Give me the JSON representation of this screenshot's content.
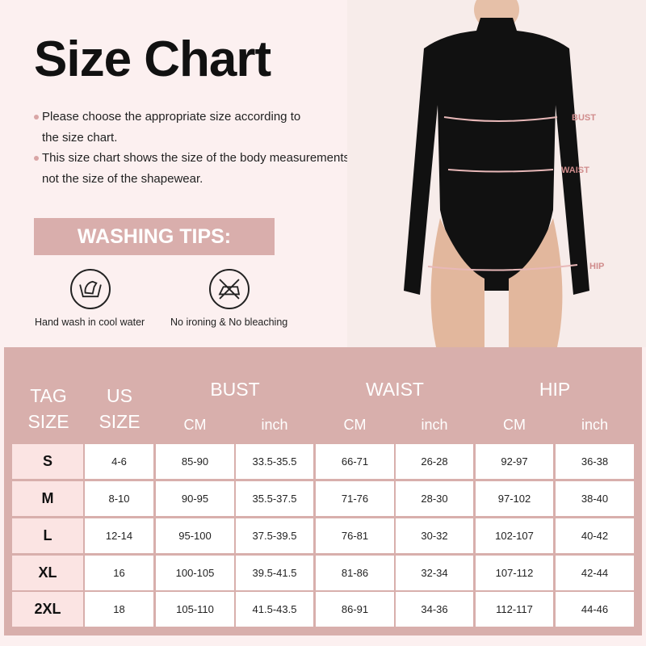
{
  "title": "Size Chart",
  "notes": [
    {
      "line1": "Please choose the appropriate size according to",
      "line2": "the size chart."
    },
    {
      "line1": "This size chart shows the size of the body measurements,",
      "line2": "not the size of the shapewear."
    }
  ],
  "washing": {
    "banner": "WASHING TIPS:",
    "tips": [
      {
        "icon": "hand-wash-icon",
        "label": "Hand wash in cool water"
      },
      {
        "icon": "no-iron-icon",
        "label": "No ironing & No bleaching"
      }
    ]
  },
  "photo": {
    "labels": {
      "bust": "BUST",
      "waist": "WAIST",
      "hip": "HIP"
    }
  },
  "colors": {
    "background": "#fcf0f0",
    "accent": "#d9aeac",
    "tag_cell": "#fbe4e3"
  },
  "table": {
    "headers": {
      "tag": [
        "TAG",
        "SIZE"
      ],
      "us": [
        "US",
        "SIZE"
      ],
      "bust": "BUST",
      "waist": "WAIST",
      "hip": "HIP",
      "cm": "CM",
      "inch": "inch"
    },
    "rows": [
      [
        "S",
        "4-6",
        "85-90",
        "33.5-35.5",
        "66-71",
        "26-28",
        "92-97",
        "36-38"
      ],
      [
        "M",
        "8-10",
        "90-95",
        "35.5-37.5",
        "71-76",
        "28-30",
        "97-102",
        "38-40"
      ],
      [
        "L",
        "12-14",
        "95-100",
        "37.5-39.5",
        "76-81",
        "30-32",
        "102-107",
        "40-42"
      ],
      [
        "XL",
        "16",
        "100-105",
        "39.5-41.5",
        "81-86",
        "32-34",
        "107-112",
        "42-44"
      ],
      [
        "2XL",
        "18",
        "105-110",
        "41.5-43.5",
        "86-91",
        "34-36",
        "112-117",
        "44-46"
      ]
    ]
  }
}
